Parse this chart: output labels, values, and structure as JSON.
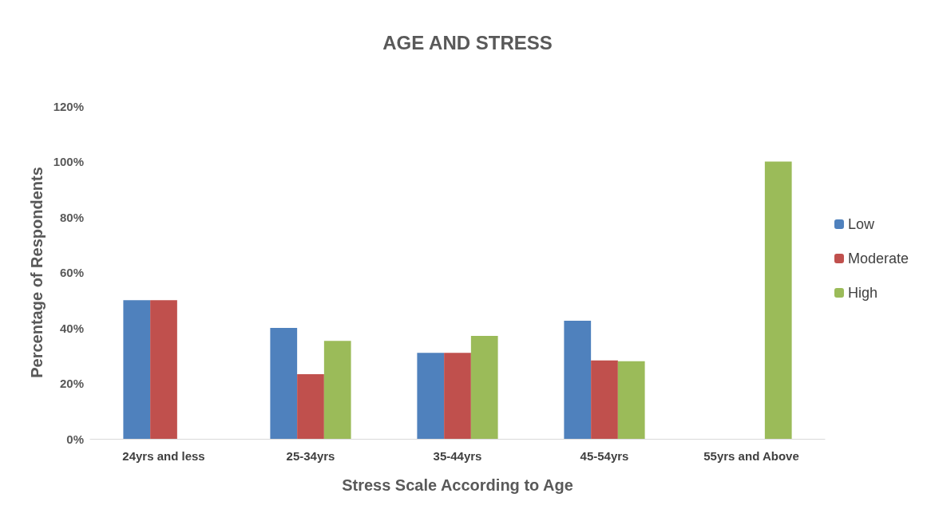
{
  "chart_data": {
    "type": "bar",
    "title": "AGE AND STRESS",
    "xlabel": "Stress Scale According to Age",
    "ylabel": "Percentage of Respondents",
    "categories": [
      "24yrs and less",
      "25-34yrs",
      "35-44yrs",
      "45-54yrs",
      "55yrs and Above"
    ],
    "series": [
      {
        "name": "Low",
        "color": "#4f81bd",
        "values": [
          50,
          40,
          31,
          42.6,
          null
        ]
      },
      {
        "name": "Moderate",
        "color": "#c0504d",
        "values": [
          50,
          23.3,
          31,
          28.3,
          null
        ]
      },
      {
        "name": "High",
        "color": "#9bbb59",
        "values": [
          null,
          35.3,
          37.1,
          28,
          100
        ]
      }
    ],
    "ylim": [
      0,
      120
    ],
    "yticks": [
      {
        "value": 0,
        "label": "0%"
      },
      {
        "value": 20,
        "label": "20%"
      },
      {
        "value": 40,
        "label": "40%"
      },
      {
        "value": 60,
        "label": "60%"
      },
      {
        "value": 80,
        "label": "80%"
      },
      {
        "value": 100,
        "label": "100%"
      },
      {
        "value": 120,
        "label": "120%"
      }
    ],
    "grid": false,
    "legend": "right"
  }
}
